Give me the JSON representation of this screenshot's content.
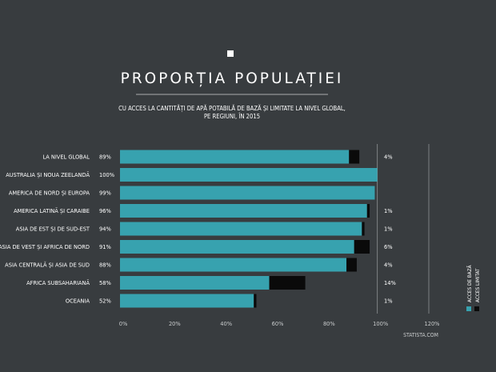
{
  "title": "PROPORȚIA POPULAȚIEI",
  "subtitle_line1": "CU ACCES LA CANTITĂȚI DE APĂ POTABILĂ DE BAZĂ ȘI LIMITATE LA NIVEL GLOBAL,",
  "subtitle_line2": "PE REGIUNI, ÎN 2015",
  "source": "STATISTA.COM",
  "colors": {
    "background": "#383c3f",
    "basic": "#37a2af",
    "limited": "#0a0a0a",
    "text": "#ffffff"
  },
  "chart_data": {
    "type": "bar",
    "orientation": "horizontal",
    "stacked": true,
    "categories": [
      "LA NIVEL GLOBAL",
      "AUSTRALIA ȘI NOUA ZEELANDĂ",
      "AMERICA DE NORD ȘI EUROPA",
      "AMERICA LATINĂ ȘI CARAIBE",
      "ASIA DE EST ȘI DE SUD-EST",
      "ASIA DE VEST ȘI AFRICA DE NORD",
      "ASIA CENTRALĂ ȘI ASIA DE SUD",
      "AFRICA SUBSAHARIANĂ",
      "OCEANIA"
    ],
    "series": [
      {
        "name": "ACCES DE BAZĂ",
        "values": [
          89,
          100,
          99,
          96,
          94,
          91,
          88,
          58,
          52
        ],
        "labels": [
          "89%",
          "100%",
          "99%",
          "96%",
          "94%",
          "91%",
          "88%",
          "58%",
          "52%"
        ]
      },
      {
        "name": "ACCES LIMITAT",
        "values": [
          4,
          0,
          0,
          1,
          1,
          6,
          4,
          14,
          1
        ],
        "labels": [
          "4%",
          "",
          "",
          "1%",
          "1%",
          "6%",
          "4%",
          "14%",
          "1%"
        ]
      }
    ],
    "xlim": [
      0,
      120
    ],
    "xticks": [
      0,
      20,
      40,
      60,
      80,
      100,
      120
    ],
    "xtick_labels": [
      "0%",
      "20%",
      "40%",
      "60%",
      "80%",
      "100%",
      "120%"
    ],
    "grid": "vertical lines at 100% and 120%",
    "legend_position": "bottom-right, rotated vertical"
  }
}
